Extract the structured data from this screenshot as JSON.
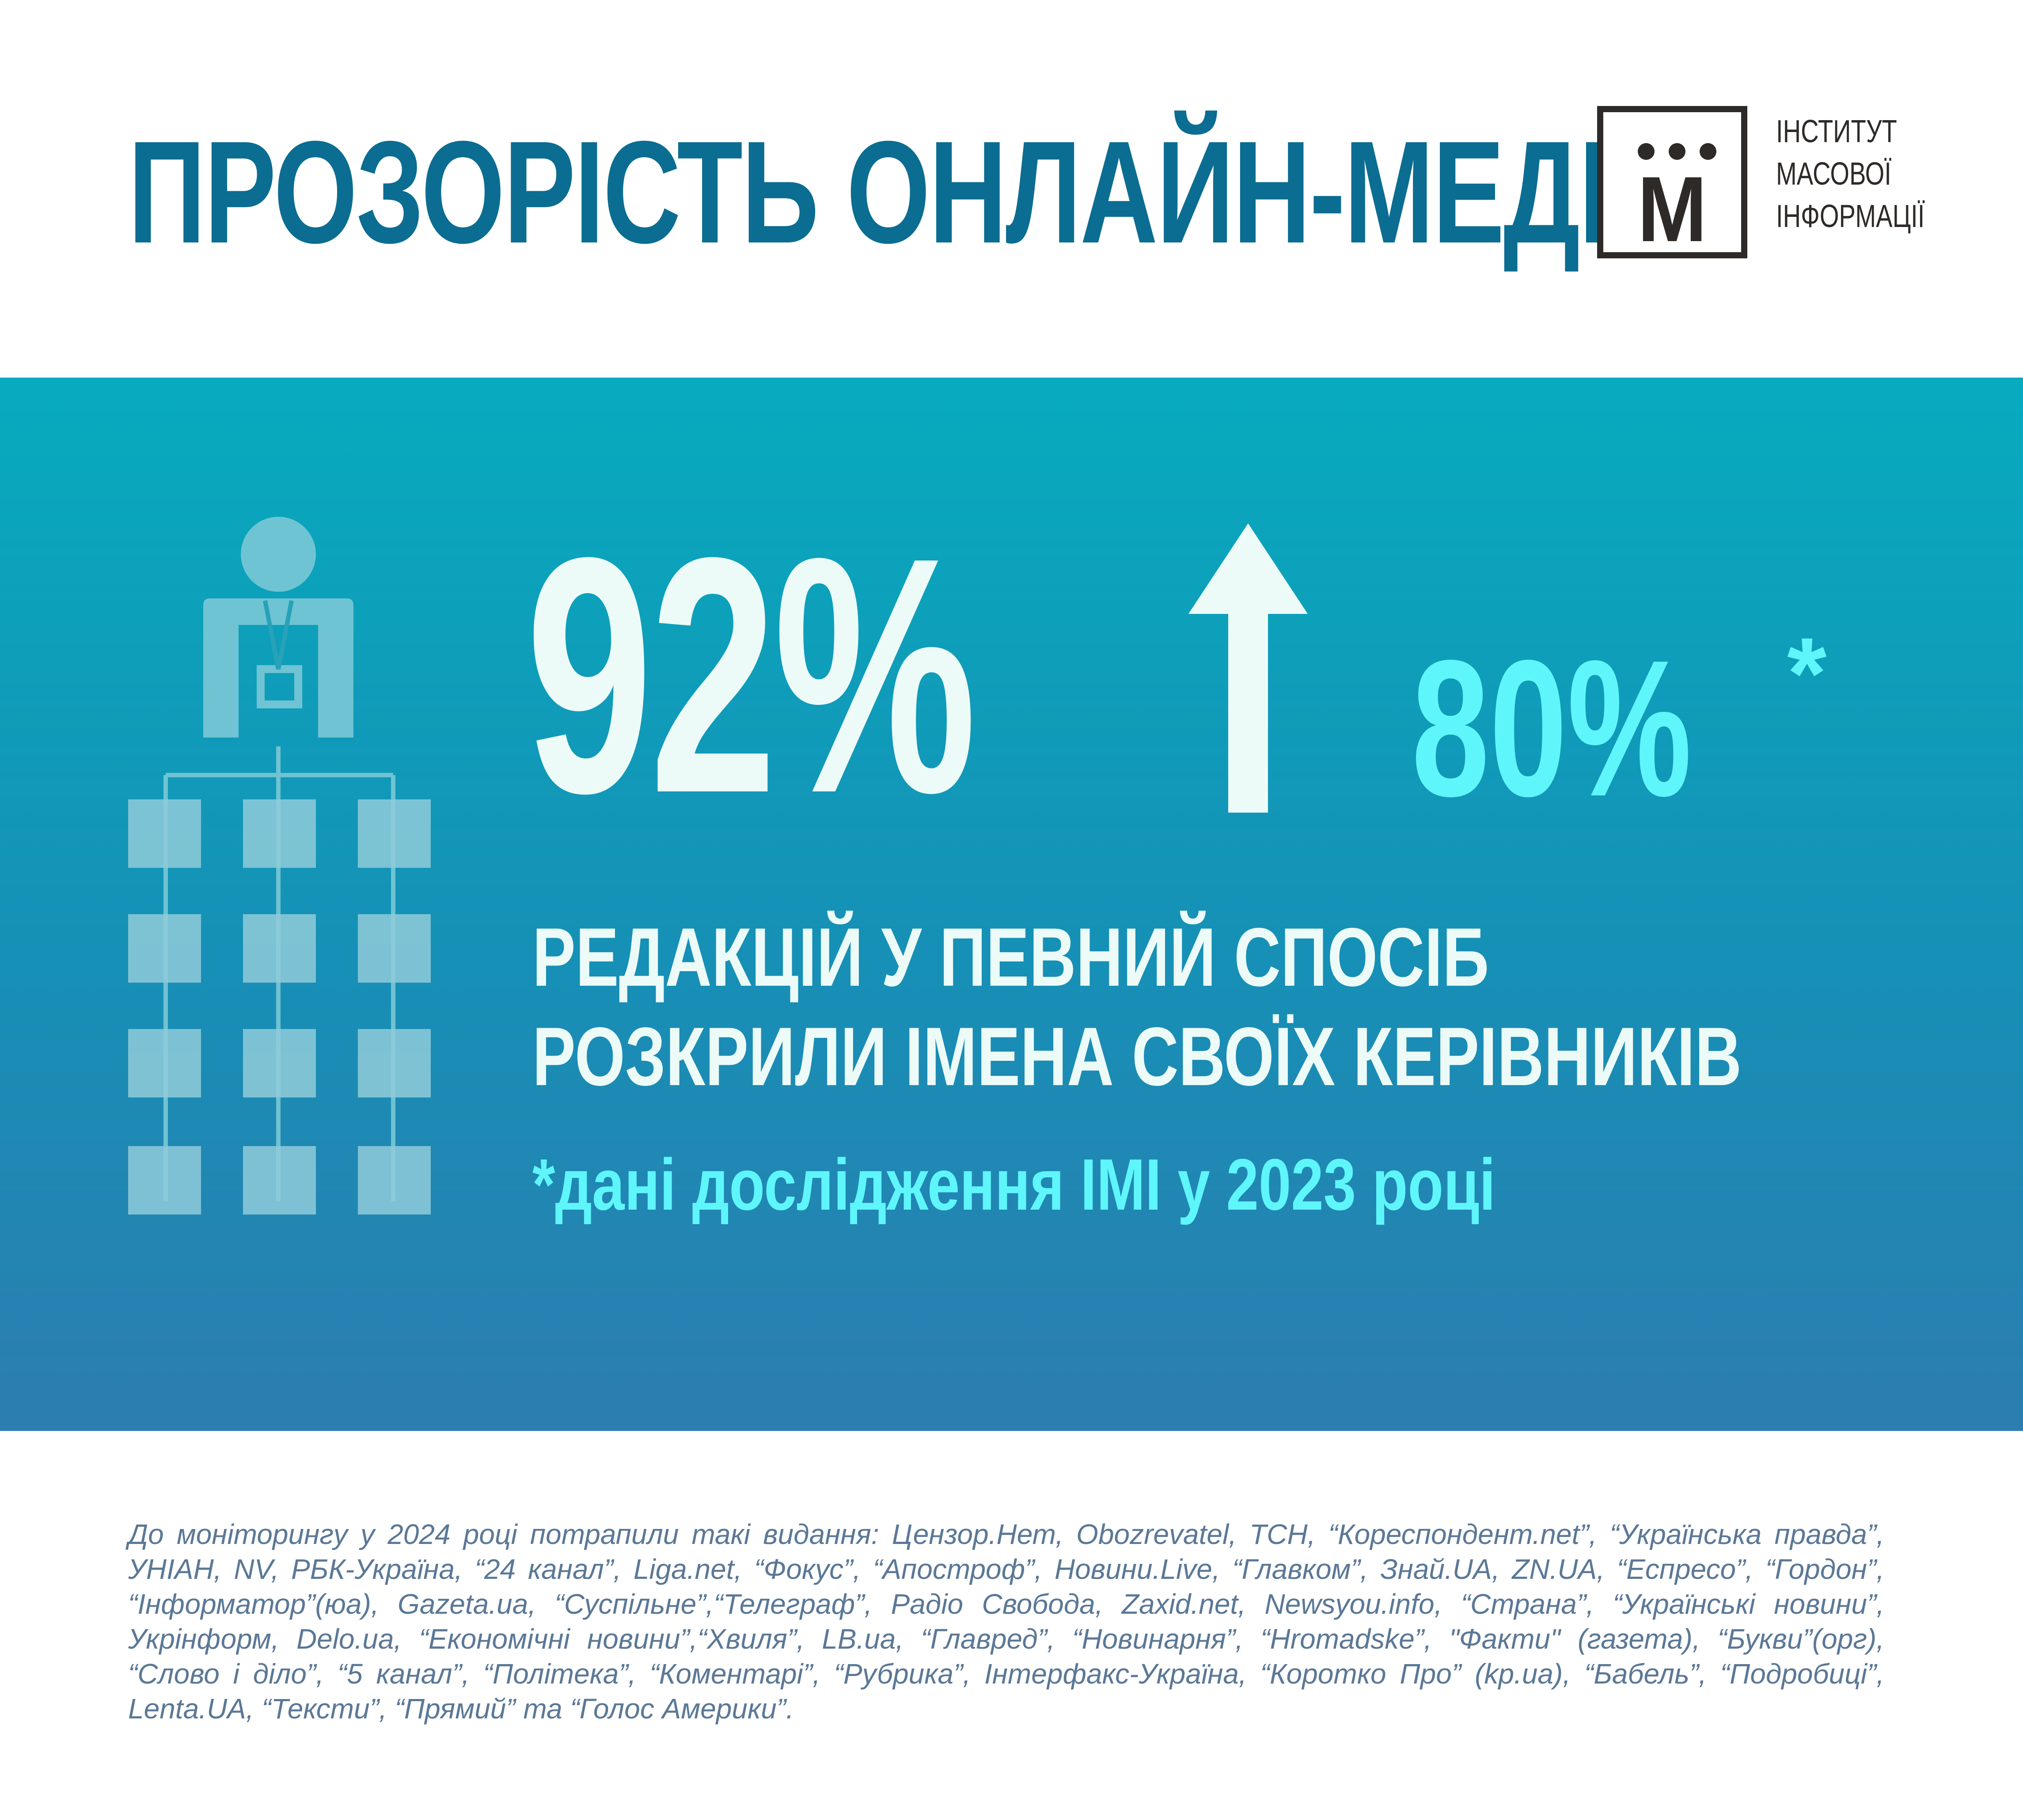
{
  "title": "ПРОЗОРІСТЬ ОНЛАЙН-МЕДІА",
  "logo": {
    "letter": "М",
    "lines": [
      "ІНСТИТУТ",
      "МАСОВОЇ",
      "ІНФОРМАЦІЇ"
    ]
  },
  "stats": {
    "current_percent": "92%",
    "previous_percent": "80%",
    "asterisk": "*",
    "change_direction": "up"
  },
  "caption": {
    "line1": "РЕДАКЦІЙ У ПЕВНИЙ СПОСІБ",
    "line2": "РОЗКРИЛИ ІМЕНА СВОЇХ КЕРІВНИКІВ"
  },
  "note": "*дані дослідження ІМІ у 2023 році",
  "footnote": "До моніторингу у 2024 році потрапили такі видання: Цензор.Нет, Obozrevatel, ТСН, “Кореспондент.net”, “Українська правда”, УНІАН, NV, РБК-Україна, “24 канал”, Liga.net, “Фокус”, “Апостроф”, Новини.Live, “Главком”, Знай.UA, ZN.UA, “Еспресо”, “Гордон”, “Інформатор”(юа), Gazeta.ua, “Суспільне”,“Телеграф”, Радіо Свобода, Zaxid.net, Newsyou.info, “Страна”, “Українські новини”, Укрінформ, Delo.ua, “Економічні новини”,“Хвиля”, LB.ua, “Главред”, “Новинарня”, “Hromadske”, \"Факти\" (газета), “Букви”(орг), “Слово і діло”, “5 канал”, “Політека”, “Коментарі”, “Рубрика”, Інтерфакс-Україна, “Коротко Про” (kp.ua), “Бабель”, “Подробиці”, Lenta.UA, “Тексти”, “Прямий” та “Голос Америки”.",
  "colors": {
    "title": "#0b6d91",
    "band_top": "#07abbe",
    "band_bottom": "#2c7db0",
    "primary_text": "#ecfbf8",
    "accent": "#5ef6fb",
    "footnote": "#5b7896",
    "logo": "#2d2a28"
  },
  "icons": [
    "org-chart-icon",
    "up-arrow-icon",
    "imi-logo-icon"
  ]
}
